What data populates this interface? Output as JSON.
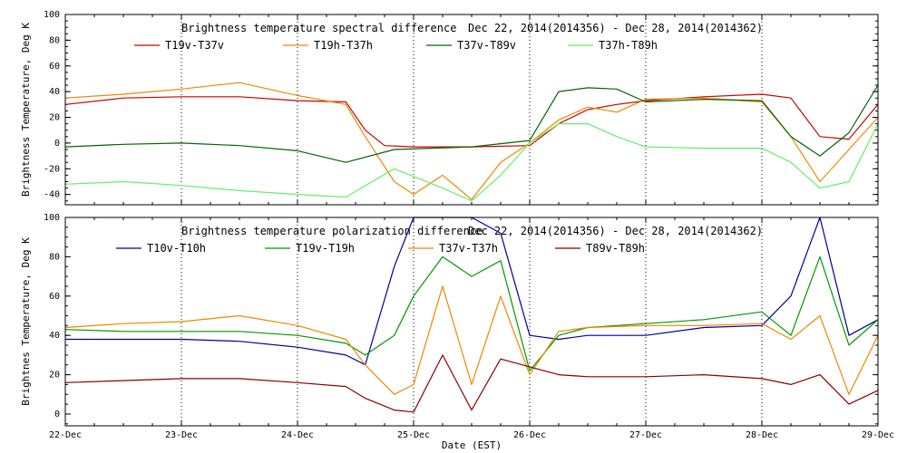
{
  "xlabel": "Date (EST)",
  "chart_data": [
    {
      "type": "line",
      "title": "Brightness temperature spectral difference",
      "date_range": "Dec 22, 2014(2014356) - Dec 28, 2014(2014362)",
      "ylabel": "Brightness Temperature, Deg K",
      "xlim": [
        "2014-12-22",
        "2014-12-29"
      ],
      "ylim": [
        -48,
        100
      ],
      "yticks": [
        "-40",
        "-20",
        "0",
        "20",
        "40",
        "60",
        "80",
        "100"
      ],
      "ytick_values": [
        -40,
        -20,
        0,
        20,
        40,
        60,
        80,
        100
      ],
      "vertical_grid": "dotted at each day",
      "legend": "top, two columns of entries",
      "series": [
        {
          "name": "T19v-T37v",
          "color": "#cc0000",
          "x": [
            "2014-12-22 00:00",
            "2014-12-22 12:00",
            "2014-12-23 00:00",
            "2014-12-23 12:00",
            "2014-12-24 00:00",
            "2014-12-24 10:00",
            "2014-12-24 14:00",
            "2014-12-24 18:00",
            "2014-12-25 00:00",
            "2014-12-25 12:00",
            "2014-12-26 00:00",
            "2014-12-26 06:00",
            "2014-12-26 12:00",
            "2014-12-26 18:00",
            "2014-12-27 00:00",
            "2014-12-27 12:00",
            "2014-12-28 00:00",
            "2014-12-28 06:00",
            "2014-12-28 12:00",
            "2014-12-28 18:00",
            "2014-12-29 00:00"
          ],
          "values": [
            30,
            35,
            36,
            36,
            33,
            32,
            10,
            -2,
            -3,
            -3,
            -2,
            15,
            26,
            30,
            33,
            36,
            38,
            35,
            5,
            3,
            30
          ]
        },
        {
          "name": "T19h-T37h",
          "color": "#ee8800",
          "x": [
            "2014-12-22 00:00",
            "2014-12-22 12:00",
            "2014-12-23 00:00",
            "2014-12-23 12:00",
            "2014-12-24 00:00",
            "2014-12-24 10:00",
            "2014-12-24 14:00",
            "2014-12-24 20:00",
            "2014-12-25 00:00",
            "2014-12-25 06:00",
            "2014-12-25 12:00",
            "2014-12-25 18:00",
            "2014-12-26 00:00",
            "2014-12-26 06:00",
            "2014-12-26 12:00",
            "2014-12-26 18:00",
            "2014-12-27 00:00",
            "2014-12-27 12:00",
            "2014-12-28 00:00",
            "2014-12-28 06:00",
            "2014-12-28 12:00",
            "2014-12-28 18:00",
            "2014-12-29 00:00"
          ],
          "values": [
            35,
            38,
            42,
            47,
            37,
            30,
            5,
            -30,
            -40,
            -25,
            -44,
            -15,
            0,
            18,
            28,
            24,
            34,
            35,
            32,
            5,
            -30,
            -5,
            20
          ]
        },
        {
          "name": "T37v-T89v",
          "color": "#006600",
          "x": [
            "2014-12-22 00:00",
            "2014-12-22 12:00",
            "2014-12-23 00:00",
            "2014-12-23 12:00",
            "2014-12-24 00:00",
            "2014-12-24 10:00",
            "2014-12-24 20:00",
            "2014-12-25 12:00",
            "2014-12-26 00:00",
            "2014-12-26 06:00",
            "2014-12-26 12:00",
            "2014-12-26 18:00",
            "2014-12-27 00:00",
            "2014-12-27 12:00",
            "2014-12-28 00:00",
            "2014-12-28 06:00",
            "2014-12-28 12:00",
            "2014-12-28 18:00",
            "2014-12-29 00:00"
          ],
          "values": [
            -3,
            -1,
            0,
            -2,
            -6,
            -15,
            -5,
            -3,
            2,
            40,
            43,
            42,
            32,
            34,
            33,
            5,
            -10,
            8,
            45
          ]
        },
        {
          "name": "T37h-T89h",
          "color": "#66ee66",
          "x": [
            "2014-12-22 00:00",
            "2014-12-22 12:00",
            "2014-12-23 00:00",
            "2014-12-23 12:00",
            "2014-12-24 00:00",
            "2014-12-24 10:00",
            "2014-12-24 20:00",
            "2014-12-25 06:00",
            "2014-12-25 12:00",
            "2014-12-25 18:00",
            "2014-12-26 00:00",
            "2014-12-26 06:00",
            "2014-12-26 12:00",
            "2014-12-26 18:00",
            "2014-12-27 00:00",
            "2014-12-27 12:00",
            "2014-12-28 00:00",
            "2014-12-28 06:00",
            "2014-12-28 12:00",
            "2014-12-28 18:00",
            "2014-12-29 00:00"
          ],
          "values": [
            -32,
            -30,
            -33,
            -37,
            -40,
            -42,
            -20,
            -35,
            -45,
            -25,
            0,
            15,
            15,
            5,
            -3,
            -4,
            -4,
            -15,
            -35,
            -30,
            15
          ]
        }
      ]
    },
    {
      "type": "line",
      "title": "Brightness temperature polarization difference",
      "date_range": "Dec 22, 2014(2014356) - Dec 28, 2014(2014362)",
      "ylabel": "Brightnes Temperature, Deg K",
      "xlim": [
        "2014-12-22",
        "2014-12-29"
      ],
      "ylim": [
        -6,
        100
      ],
      "yticks": [
        "0",
        "20",
        "40",
        "60",
        "80",
        "100"
      ],
      "ytick_values": [
        0,
        20,
        40,
        60,
        80,
        100
      ],
      "xticks": [
        "22-Dec",
        "23-Dec",
        "24-Dec",
        "25-Dec",
        "26-Dec",
        "27-Dec",
        "28-Dec",
        "29-Dec"
      ],
      "xtick_values": [
        "2014-12-22",
        "2014-12-23",
        "2014-12-24",
        "2014-12-25",
        "2014-12-26",
        "2014-12-27",
        "2014-12-28",
        "2014-12-29"
      ],
      "vertical_grid": "dotted at each day",
      "legend": "top, two columns of entries",
      "series": [
        {
          "name": "T10v-T10h",
          "color": "#000099",
          "x": [
            "2014-12-22 00:00",
            "2014-12-22 12:00",
            "2014-12-23 00:00",
            "2014-12-23 12:00",
            "2014-12-24 00:00",
            "2014-12-24 10:00",
            "2014-12-24 14:00",
            "2014-12-24 20:00",
            "2014-12-25 00:00",
            "2014-12-25 06:00",
            "2014-12-25 12:00",
            "2014-12-25 18:00",
            "2014-12-26 00:00",
            "2014-12-26 06:00",
            "2014-12-26 12:00",
            "2014-12-27 00:00",
            "2014-12-27 12:00",
            "2014-12-28 00:00",
            "2014-12-28 06:00",
            "2014-12-28 12:00",
            "2014-12-28 18:00",
            "2014-12-29 00:00"
          ],
          "values": [
            38,
            38,
            38,
            37,
            34,
            30,
            25,
            75,
            100,
            100,
            100,
            92,
            40,
            38,
            40,
            40,
            44,
            45,
            60,
            100,
            40,
            48
          ]
        },
        {
          "name": "T19v-T19h",
          "color": "#009900",
          "x": [
            "2014-12-22 00:00",
            "2014-12-22 12:00",
            "2014-12-23 00:00",
            "2014-12-23 12:00",
            "2014-12-24 00:00",
            "2014-12-24 10:00",
            "2014-12-24 14:00",
            "2014-12-24 20:00",
            "2014-12-25 00:00",
            "2014-12-25 06:00",
            "2014-12-25 12:00",
            "2014-12-25 18:00",
            "2014-12-26 00:00",
            "2014-12-26 06:00",
            "2014-12-26 12:00",
            "2014-12-27 00:00",
            "2014-12-27 12:00",
            "2014-12-28 00:00",
            "2014-12-28 06:00",
            "2014-12-28 12:00",
            "2014-12-28 18:00",
            "2014-12-29 00:00"
          ],
          "values": [
            43,
            42,
            42,
            42,
            40,
            36,
            30,
            40,
            60,
            80,
            70,
            78,
            22,
            40,
            44,
            46,
            48,
            52,
            40,
            80,
            35,
            48
          ]
        },
        {
          "name": "T37v-T37h",
          "color": "#ee8800",
          "x": [
            "2014-12-22 00:00",
            "2014-12-22 12:00",
            "2014-12-23 00:00",
            "2014-12-23 12:00",
            "2014-12-24 00:00",
            "2014-12-24 10:00",
            "2014-12-24 14:00",
            "2014-12-24 20:00",
            "2014-12-25 00:00",
            "2014-12-25 06:00",
            "2014-12-25 12:00",
            "2014-12-25 18:00",
            "2014-12-26 00:00",
            "2014-12-26 06:00",
            "2014-12-26 12:00",
            "2014-12-27 00:00",
            "2014-12-27 12:00",
            "2014-12-28 00:00",
            "2014-12-28 06:00",
            "2014-12-28 12:00",
            "2014-12-28 18:00",
            "2014-12-29 00:00"
          ],
          "values": [
            44,
            46,
            47,
            50,
            45,
            38,
            25,
            10,
            15,
            65,
            15,
            60,
            20,
            42,
            44,
            45,
            45,
            46,
            38,
            50,
            10,
            40
          ]
        },
        {
          "name": "T89v-T89h",
          "color": "#880000",
          "x": [
            "2014-12-22 00:00",
            "2014-12-22 12:00",
            "2014-12-23 00:00",
            "2014-12-23 12:00",
            "2014-12-24 00:00",
            "2014-12-24 10:00",
            "2014-12-24 14:00",
            "2014-12-24 20:00",
            "2014-12-25 00:00",
            "2014-12-25 06:00",
            "2014-12-25 12:00",
            "2014-12-25 18:00",
            "2014-12-26 00:00",
            "2014-12-26 06:00",
            "2014-12-26 12:00",
            "2014-12-27 00:00",
            "2014-12-27 12:00",
            "2014-12-28 00:00",
            "2014-12-28 06:00",
            "2014-12-28 12:00",
            "2014-12-28 18:00",
            "2014-12-29 00:00"
          ],
          "values": [
            16,
            17,
            18,
            18,
            16,
            14,
            8,
            2,
            1,
            30,
            2,
            28,
            24,
            20,
            19,
            19,
            20,
            18,
            15,
            20,
            5,
            12
          ]
        }
      ]
    }
  ]
}
